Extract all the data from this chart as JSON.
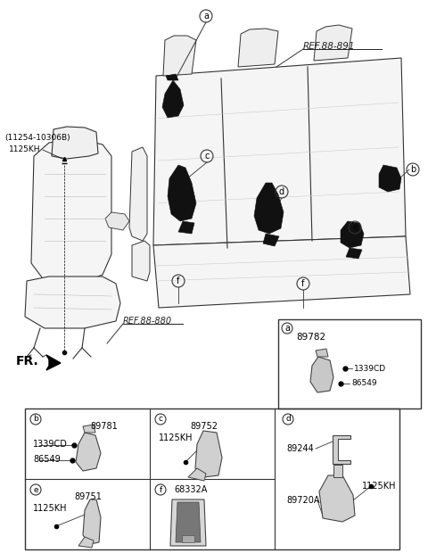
{
  "bg_color": "#ffffff",
  "ref_891_text": "REF.88-891",
  "ref_880_text": "REF.88-880",
  "fr_text": "FR.",
  "label_a": "a",
  "label_b": "b",
  "label_c": "c",
  "label_d": "d",
  "label_e": "e",
  "label_f": "f",
  "part_11254": "(11254-10306B)",
  "part_1125KH": "1125KH",
  "part_89782": "89782",
  "part_1339CD_a": "1339CD",
  "part_86549_a": "86549",
  "part_89781": "89781",
  "part_1339CD_b": "1339CD",
  "part_86549_b": "86549",
  "part_89752": "89752",
  "part_1125KH_c": "1125KH",
  "part_89244": "89244",
  "part_89720A": "89720A",
  "part_1125KH_d": "1125KH",
  "part_89751": "89751",
  "part_1125KH_e": "1125KH",
  "part_68332A": "68332A"
}
